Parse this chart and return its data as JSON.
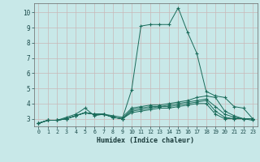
{
  "xlabel": "Humidex (Indice chaleur)",
  "ylabel": "",
  "bg_color": "#c8e8e8",
  "grid_color_major": "#c8b8b8",
  "grid_color_minor": "#b8d0d0",
  "line_color": "#1a6b5a",
  "xlim": [
    -0.5,
    23.5
  ],
  "ylim": [
    2.5,
    10.6
  ],
  "xticks": [
    0,
    1,
    2,
    3,
    4,
    5,
    6,
    7,
    8,
    9,
    10,
    11,
    12,
    13,
    14,
    15,
    16,
    17,
    18,
    19,
    20,
    21,
    22,
    23
  ],
  "yticks": [
    3,
    4,
    5,
    6,
    7,
    8,
    9,
    10
  ],
  "series": [
    [
      2.7,
      2.9,
      2.9,
      3.1,
      3.3,
      3.7,
      3.2,
      3.3,
      3.1,
      3.0,
      4.9,
      9.1,
      9.2,
      9.2,
      9.2,
      10.3,
      8.7,
      7.3,
      4.8,
      4.5,
      4.4,
      3.8,
      3.7,
      3.0
    ],
    [
      2.7,
      2.9,
      2.9,
      3.0,
      3.2,
      3.4,
      3.3,
      3.3,
      3.2,
      3.1,
      3.7,
      3.8,
      3.9,
      3.9,
      4.0,
      4.1,
      4.2,
      4.4,
      4.5,
      4.4,
      3.5,
      3.2,
      3.0,
      2.9
    ],
    [
      2.7,
      2.9,
      2.9,
      3.0,
      3.2,
      3.4,
      3.3,
      3.3,
      3.1,
      3.0,
      3.6,
      3.7,
      3.8,
      3.8,
      3.9,
      4.0,
      4.1,
      4.2,
      4.3,
      3.8,
      3.3,
      3.1,
      3.0,
      3.0
    ],
    [
      2.7,
      2.9,
      2.9,
      3.0,
      3.2,
      3.4,
      3.3,
      3.3,
      3.1,
      3.0,
      3.5,
      3.6,
      3.7,
      3.8,
      3.8,
      3.9,
      4.0,
      4.1,
      4.2,
      3.5,
      3.1,
      3.0,
      3.0,
      3.0
    ],
    [
      2.7,
      2.9,
      2.9,
      3.0,
      3.2,
      3.4,
      3.3,
      3.3,
      3.1,
      3.0,
      3.4,
      3.5,
      3.6,
      3.7,
      3.7,
      3.8,
      3.9,
      4.0,
      4.0,
      3.3,
      3.0,
      3.0,
      3.0,
      3.0
    ]
  ]
}
